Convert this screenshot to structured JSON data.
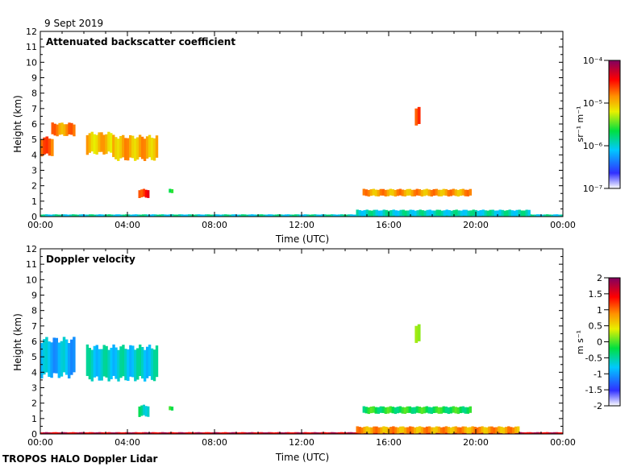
{
  "date_label": "9 Sept 2019",
  "footer": "TROPOS HALO Doppler Lidar",
  "chart_data": [
    {
      "type": "heatmap",
      "title": "Attenuated backscatter coefficient",
      "xlabel": "Time (UTC)",
      "ylabel": "Height (km)",
      "x_ticks": [
        "00:00",
        "04:00",
        "08:00",
        "12:00",
        "16:00",
        "20:00",
        "00:00"
      ],
      "y_ticks": [
        "0",
        "1",
        "2",
        "3",
        "4",
        "5",
        "6",
        "7",
        "8",
        "9",
        "10",
        "11",
        "12"
      ],
      "xlim_hours": [
        0,
        24
      ],
      "ylim": [
        0,
        12
      ],
      "colorbar": {
        "unit_label": "sr⁻¹ m⁻¹",
        "ticks": [
          "10⁻⁴",
          "10⁻⁵",
          "10⁻⁶",
          "10⁻⁷"
        ],
        "scale": "log",
        "range": [
          1e-07,
          0.0001
        ]
      },
      "features": [
        {
          "t0": 0.0,
          "t1": 0.6,
          "h0": 3.9,
          "h1": 5.2,
          "value": 0.75
        },
        {
          "t0": 0.5,
          "t1": 1.6,
          "h0": 5.2,
          "h1": 6.1,
          "value": 0.72
        },
        {
          "t0": 2.1,
          "t1": 3.3,
          "h0": 4.0,
          "h1": 5.5,
          "value": 0.66
        },
        {
          "t0": 3.3,
          "t1": 5.4,
          "h0": 3.6,
          "h1": 5.3,
          "value": 0.68
        },
        {
          "t0": 4.5,
          "t1": 5.0,
          "h0": 1.2,
          "h1": 1.8,
          "value": 0.82
        },
        {
          "t0": 5.9,
          "t1": 6.1,
          "h0": 1.5,
          "h1": 1.8,
          "value": 0.5
        },
        {
          "t0": 17.2,
          "t1": 17.45,
          "h0": 5.9,
          "h1": 7.2,
          "value": 0.78
        },
        {
          "t0": 14.8,
          "t1": 19.8,
          "h0": 1.3,
          "h1": 1.8,
          "value": 0.7
        },
        {
          "t0": 0.0,
          "t1": 24.0,
          "h0": 0.0,
          "h1": 0.15,
          "value": 0.35
        },
        {
          "t0": 14.5,
          "t1": 22.5,
          "h0": 0.0,
          "h1": 0.45,
          "value": 0.35
        }
      ]
    },
    {
      "type": "heatmap",
      "title": "Doppler velocity",
      "xlabel": "Time (UTC)",
      "ylabel": "Height (km)",
      "x_ticks": [
        "00:00",
        "04:00",
        "08:00",
        "12:00",
        "16:00",
        "20:00",
        "00:00"
      ],
      "y_ticks": [
        "0",
        "1",
        "2",
        "3",
        "4",
        "5",
        "6",
        "7",
        "8",
        "9",
        "10",
        "11",
        "12"
      ],
      "xlim_hours": [
        0,
        24
      ],
      "ylim": [
        0,
        12
      ],
      "colorbar": {
        "unit_label": "m s⁻¹",
        "ticks": [
          "2",
          "1.5",
          "1",
          "0.5",
          "0",
          "-0.5",
          "-1",
          "-1.5",
          "-2"
        ],
        "scale": "linear",
        "range": [
          -2,
          2
        ]
      },
      "features": [
        {
          "t0": 0.0,
          "t1": 1.6,
          "h0": 3.6,
          "h1": 6.3,
          "value": 0.28
        },
        {
          "t0": 2.1,
          "t1": 5.4,
          "h0": 3.4,
          "h1": 5.8,
          "value": 0.33
        },
        {
          "t0": 4.5,
          "t1": 5.0,
          "h0": 1.1,
          "h1": 1.9,
          "value": 0.38
        },
        {
          "t0": 5.9,
          "t1": 6.1,
          "h0": 1.5,
          "h1": 1.8,
          "value": 0.48
        },
        {
          "t0": 17.2,
          "t1": 17.45,
          "h0": 5.9,
          "h1": 7.2,
          "value": 0.6
        },
        {
          "t0": 14.8,
          "t1": 19.8,
          "h0": 1.3,
          "h1": 1.8,
          "value": 0.45
        },
        {
          "t0": 0.0,
          "t1": 24.0,
          "h0": 0.0,
          "h1": 0.12,
          "value": 0.9
        },
        {
          "t0": 14.5,
          "t1": 22.0,
          "h0": 0.0,
          "h1": 0.5,
          "value": 0.7
        }
      ]
    }
  ]
}
